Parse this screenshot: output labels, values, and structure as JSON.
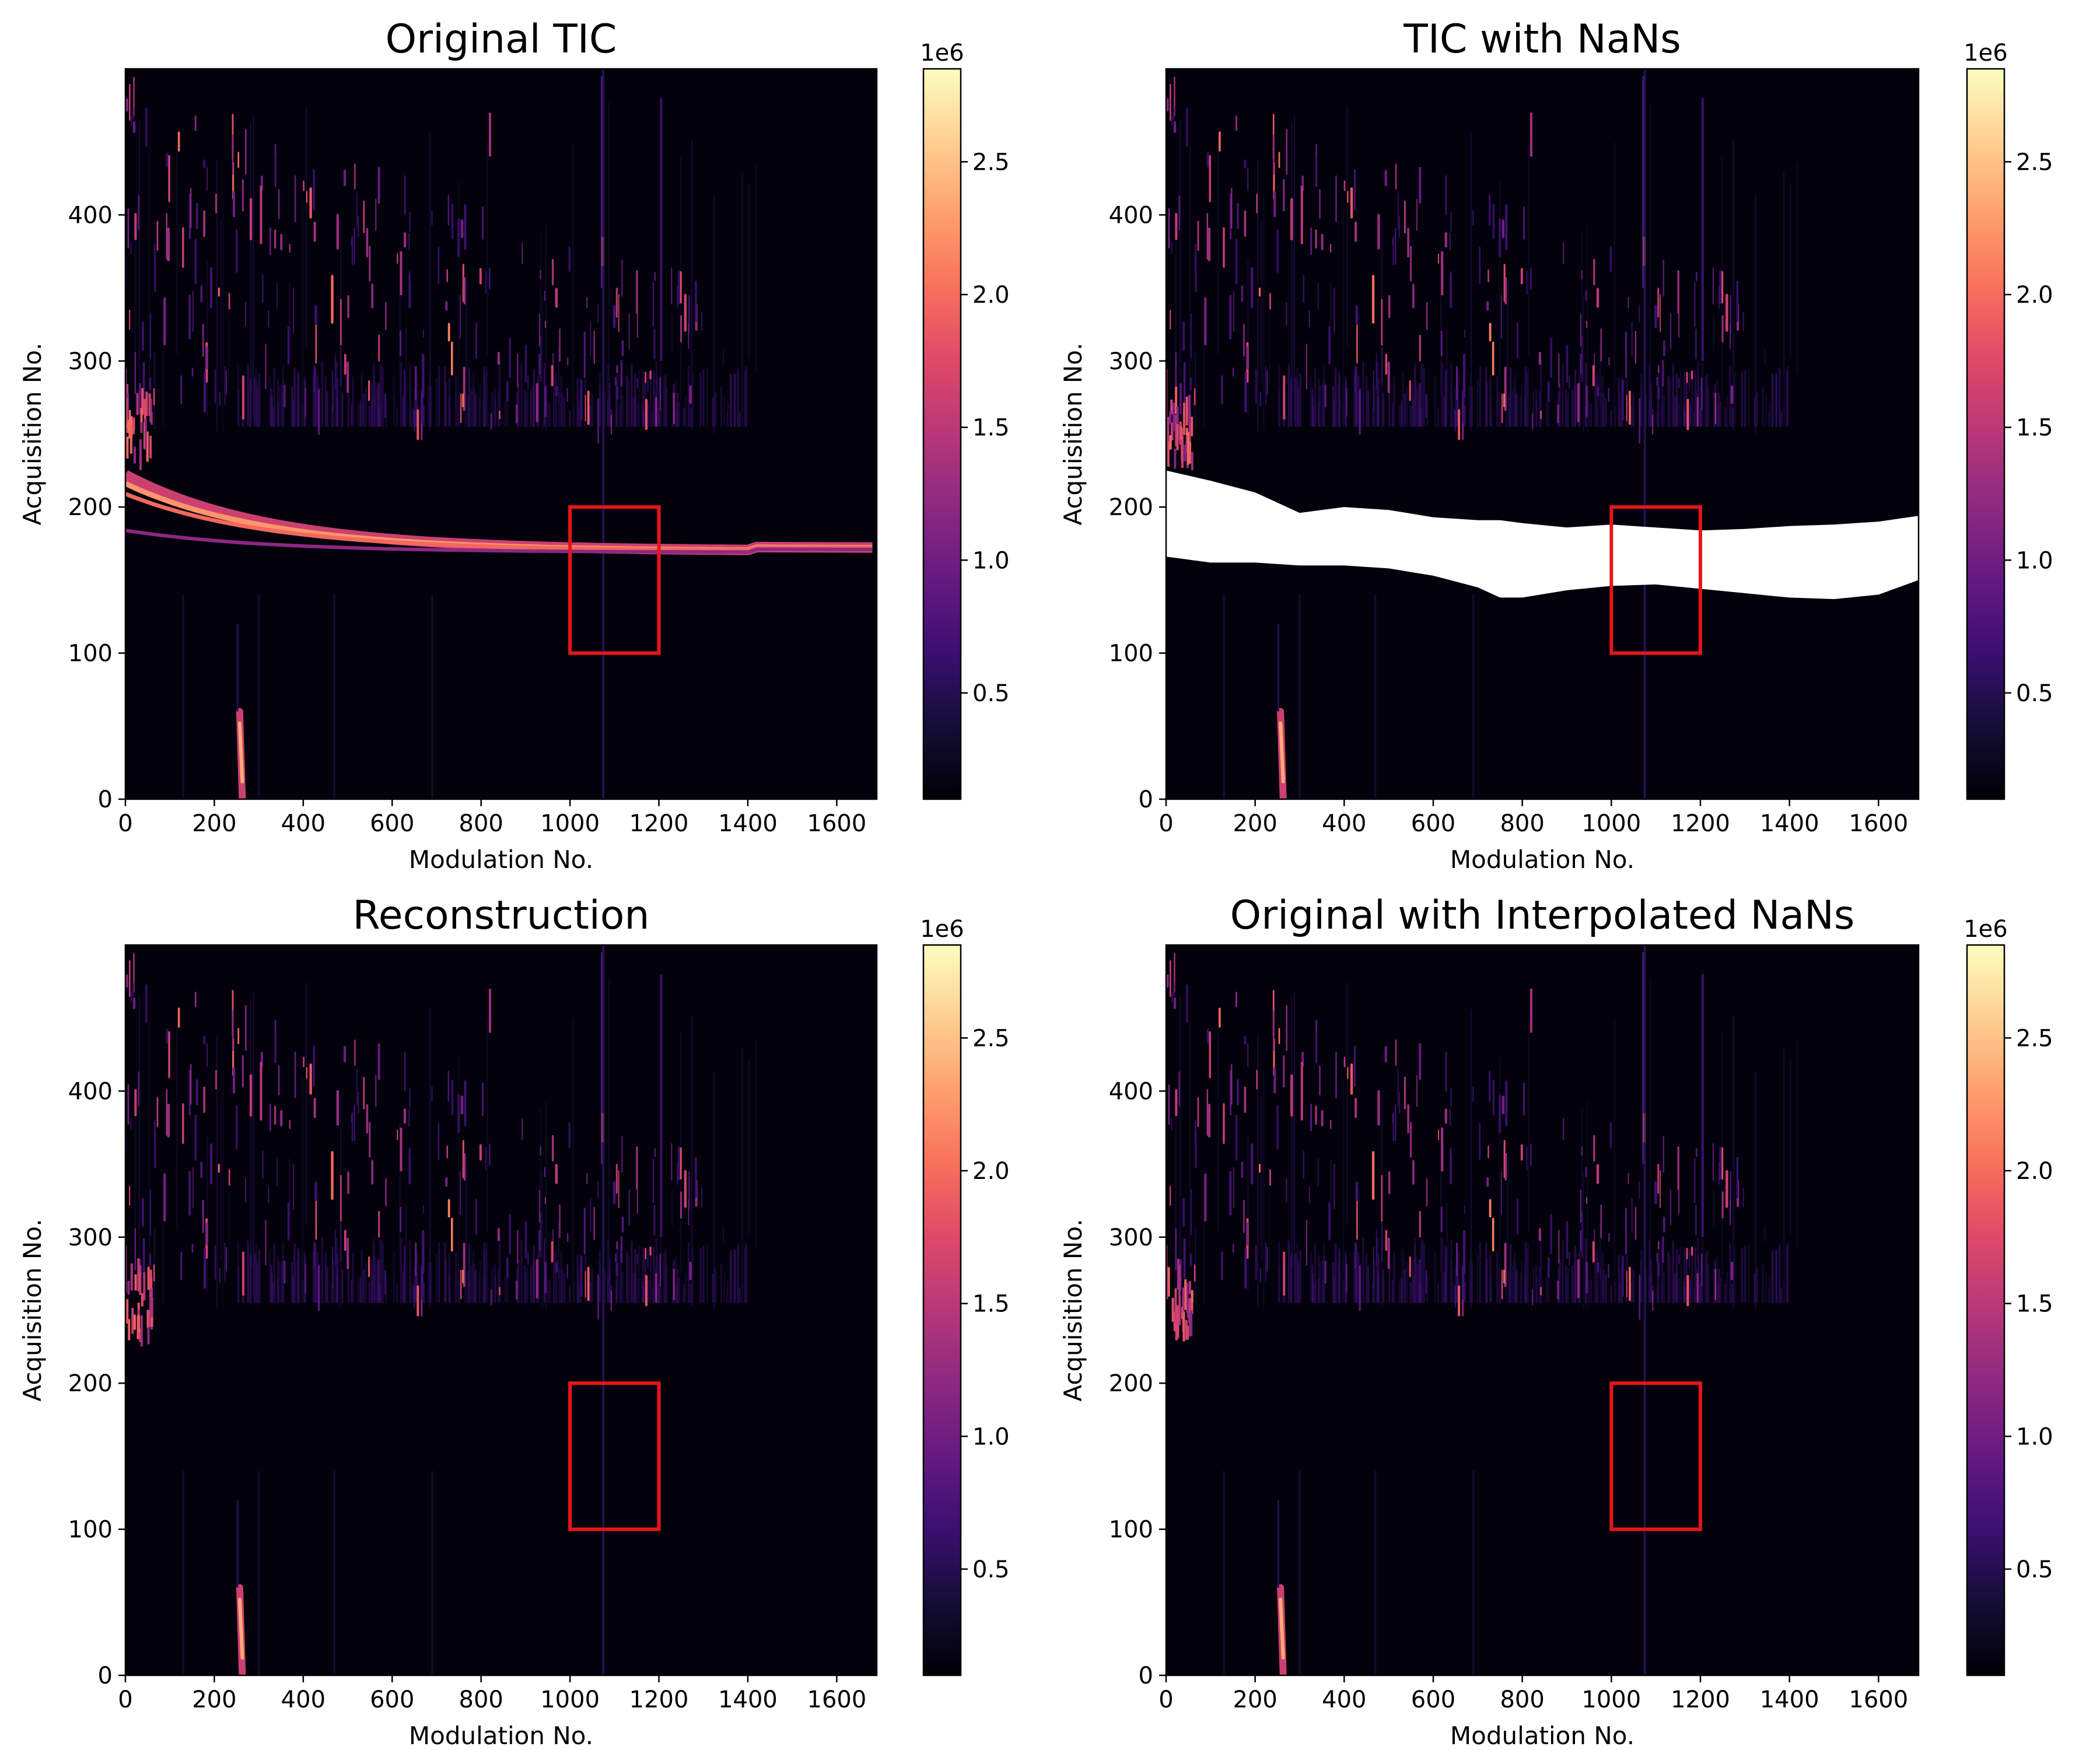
{
  "colorbar": {
    "colormap": "magma",
    "multiplier": "1e6",
    "range": [
      0.1,
      2.85
    ],
    "ticks": [
      "0.5",
      "1.0",
      "1.5",
      "2.0",
      "2.5"
    ],
    "tick_values": [
      0.5,
      1.0,
      1.5,
      2.0,
      2.5
    ]
  },
  "chart_data": [
    {
      "type": "heatmap",
      "title": "Original TIC",
      "xlabel": "Modulation No.",
      "ylabel": "Acquisition No.",
      "xlim": [
        0,
        1690
      ],
      "ylim": [
        0,
        500
      ],
      "xticks": [
        "0",
        "200",
        "400",
        "600",
        "800",
        "1000",
        "1200",
        "1400",
        "1600"
      ],
      "yticks": [
        "0",
        "100",
        "200",
        "300",
        "400"
      ],
      "highlight_box": {
        "x": [
          1000,
          1200
        ],
        "y": [
          100,
          200
        ],
        "color": "#e8141a"
      },
      "features": {
        "bright_band": true,
        "upper_noise": true,
        "lower_streak": {
          "x": 260,
          "y": [
            0,
            60
          ]
        },
        "vertical_line_x": 1075
      },
      "nan_region": null
    },
    {
      "type": "heatmap",
      "title": "TIC with NaNs",
      "xlabel": "Modulation No.",
      "ylabel": "Acquisition No.",
      "xlim": [
        0,
        1690
      ],
      "ylim": [
        0,
        500
      ],
      "xticks": [
        "0",
        "200",
        "400",
        "600",
        "800",
        "1000",
        "1200",
        "1400",
        "1600"
      ],
      "yticks": [
        "0",
        "100",
        "200",
        "300",
        "400"
      ],
      "highlight_box": {
        "x": [
          1000,
          1200
        ],
        "y": [
          100,
          200
        ],
        "color": "#e8141a"
      },
      "features": {
        "bright_band": false,
        "upper_noise": true,
        "lower_streak": {
          "x": 260,
          "y": [
            0,
            60
          ]
        },
        "vertical_line_x": 1075
      },
      "nan_region": {
        "x": [
          0,
          100,
          200,
          300,
          400,
          500,
          600,
          700,
          750,
          800,
          900,
          1000,
          1100,
          1200,
          1300,
          1400,
          1500,
          1600,
          1690
        ],
        "upper": [
          225,
          218,
          210,
          196,
          200,
          198,
          193,
          191,
          191,
          189,
          186,
          188,
          186,
          184,
          185,
          187,
          188,
          190,
          194
        ],
        "lower": [
          166,
          162,
          162,
          160,
          160,
          158,
          153,
          145,
          138,
          138,
          143,
          146,
          147,
          144,
          141,
          138,
          137,
          140,
          150
        ]
      }
    },
    {
      "type": "heatmap",
      "title": "Reconstruction",
      "xlabel": "Modulation No.",
      "ylabel": "Acquisition No.",
      "xlim": [
        0,
        1690
      ],
      "ylim": [
        0,
        500
      ],
      "xticks": [
        "0",
        "200",
        "400",
        "600",
        "800",
        "1000",
        "1200",
        "1400",
        "1600"
      ],
      "yticks": [
        "0",
        "100",
        "200",
        "300",
        "400"
      ],
      "highlight_box": {
        "x": [
          1000,
          1200
        ],
        "y": [
          100,
          200
        ],
        "color": "#e8141a"
      },
      "features": {
        "bright_band": false,
        "upper_noise": true,
        "lower_streak": {
          "x": 260,
          "y": [
            0,
            60
          ]
        },
        "vertical_line_x": 1075
      },
      "nan_region": null
    },
    {
      "type": "heatmap",
      "title": "Original with Interpolated NaNs",
      "xlabel": "Modulation No.",
      "ylabel": "Acquisition No.",
      "xlim": [
        0,
        1690
      ],
      "ylim": [
        0,
        500
      ],
      "xticks": [
        "0",
        "200",
        "400",
        "600",
        "800",
        "1000",
        "1200",
        "1400",
        "1600"
      ],
      "yticks": [
        "0",
        "100",
        "200",
        "300",
        "400"
      ],
      "highlight_box": {
        "x": [
          1000,
          1200
        ],
        "y": [
          100,
          200
        ],
        "color": "#e8141a"
      },
      "features": {
        "bright_band": false,
        "upper_noise": true,
        "lower_streak": {
          "x": 260,
          "y": [
            0,
            60
          ]
        },
        "vertical_line_x": 1075
      },
      "nan_region": null
    }
  ]
}
